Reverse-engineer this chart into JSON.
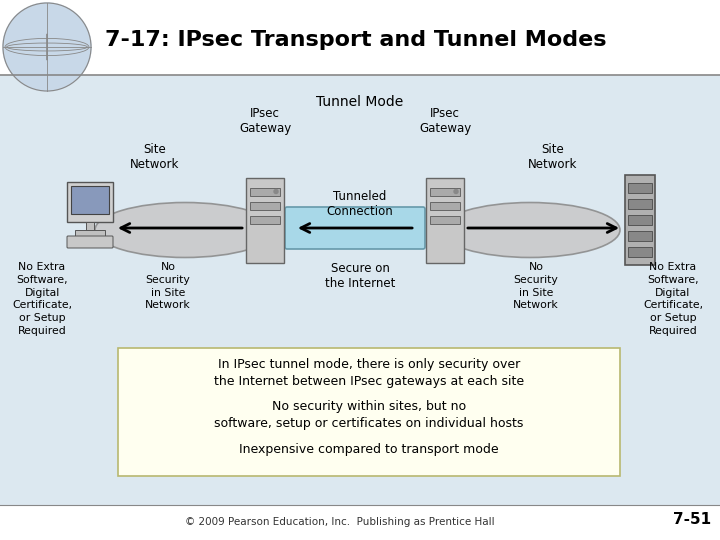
{
  "title": "7-17: IPsec Transport and Tunnel Modes",
  "slide_bg": "#ffffff",
  "title_bar_color": "#ffffff",
  "diag_bg": "#dce8f0",
  "title_color": "#000000",
  "title_fontsize": 16,
  "bullet_box_color": "#fffff0",
  "bullet_box_edge": "#b8b870",
  "bullets": [
    "In IPsec tunnel mode, there is only security over\nthe Internet between IPsec gateways at each site",
    "No security within sites, but no\nsoftware, setup or certificates on individual hosts",
    "Inexpensive compared to transport mode"
  ],
  "labels": {
    "tunnel_mode": "Tunnel Mode",
    "ipsec_gw_left": "IPsec\nGateway",
    "ipsec_gw_right": "IPsec\nGateway",
    "site_network_left": "Site\nNetwork",
    "site_network_right": "Site\nNetwork",
    "tunneled_connection": "Tunneled\nConnection",
    "secure_internet": "Secure on\nthe Internet",
    "no_extra_left": "No Extra\nSoftware,\nDigital\nCertificate,\nor Setup\nRequired",
    "no_security_left": "No\nSecurity\nin Site\nNetwork",
    "no_security_right": "No\nSecurity\nin Site\nNetwork",
    "no_extra_right": "No Extra\nSoftware,\nDigital\nCertificate,\nor Setup\nRequired"
  },
  "footer": "© 2009 Pearson Education, Inc.  Publishing as Prentice Hall",
  "slide_number": "7-51",
  "tunnel_fill": "#a8d8e8",
  "gateway_fill": "#c8c8c8",
  "ellipse_fill": "#c8c8c8",
  "arrow_color": "#000000"
}
